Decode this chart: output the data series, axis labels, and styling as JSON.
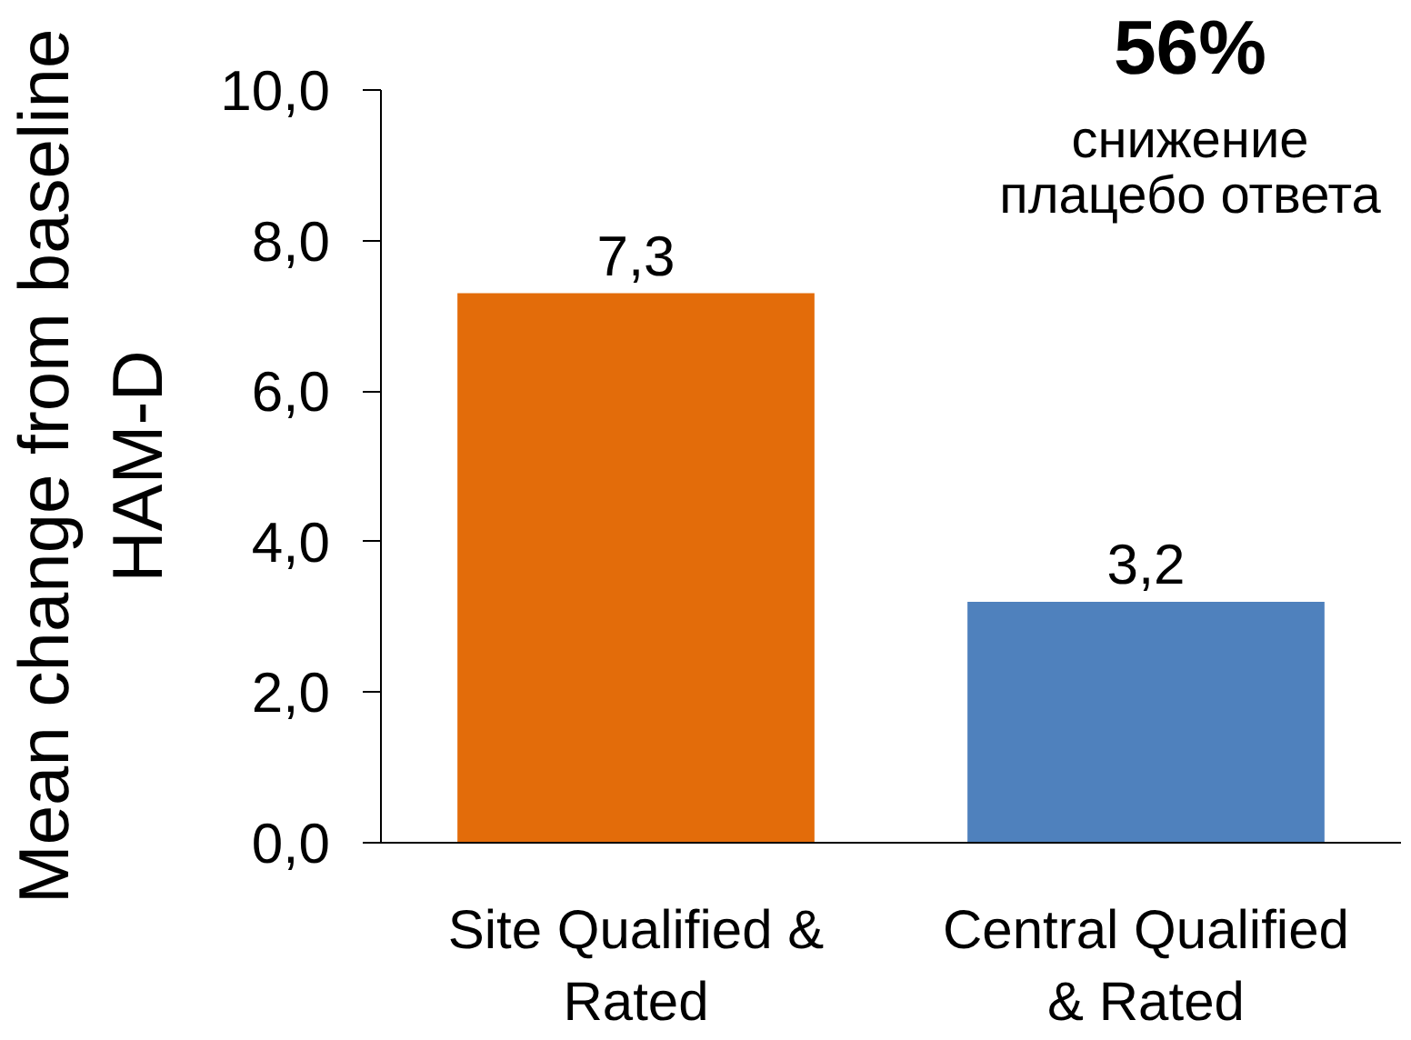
{
  "chart_data": {
    "type": "bar",
    "ylabel": "Mean change from baseline\nHAM-D",
    "categories": [
      "Site Qualified & Rated",
      "Central Qualified & Rated"
    ],
    "values": [
      7.3,
      3.2
    ],
    "colors": [
      "#e36c0a",
      "#4f81bd"
    ],
    "value_labels": [
      "7,3",
      "3,2"
    ],
    "ylim": [
      0,
      10
    ],
    "yticks": [
      {
        "value": 0,
        "label": "0,0"
      },
      {
        "value": 2,
        "label": "2,0"
      },
      {
        "value": 4,
        "label": "4,0"
      },
      {
        "value": 6,
        "label": "6,0"
      },
      {
        "value": 8,
        "label": "8,0"
      },
      {
        "value": 10,
        "label": "10,0"
      }
    ],
    "grid": false,
    "annotations": [
      "56%",
      "снижение\nплацебо ответа"
    ]
  }
}
